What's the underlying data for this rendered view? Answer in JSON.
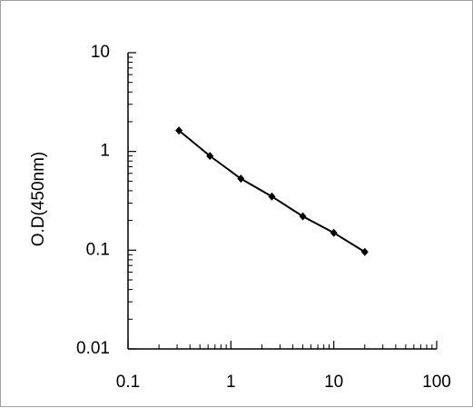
{
  "chart_data": {
    "type": "line",
    "log_x": true,
    "log_y": true,
    "y_label": "O.D(450nm)",
    "x": [
      0.3125,
      0.625,
      1.25,
      2.5,
      5,
      10,
      20
    ],
    "series": [
      {
        "color": "#000000",
        "values": [
          1.63,
          0.9,
          0.53,
          0.35,
          0.22,
          0.15,
          0.096
        ]
      }
    ],
    "xlim": [
      0.1,
      100
    ],
    "xticks": [
      0.1,
      1,
      10,
      100
    ],
    "ylim": [
      0.01,
      10
    ],
    "yticks": [
      0.01,
      0.1,
      1,
      10
    ]
  }
}
